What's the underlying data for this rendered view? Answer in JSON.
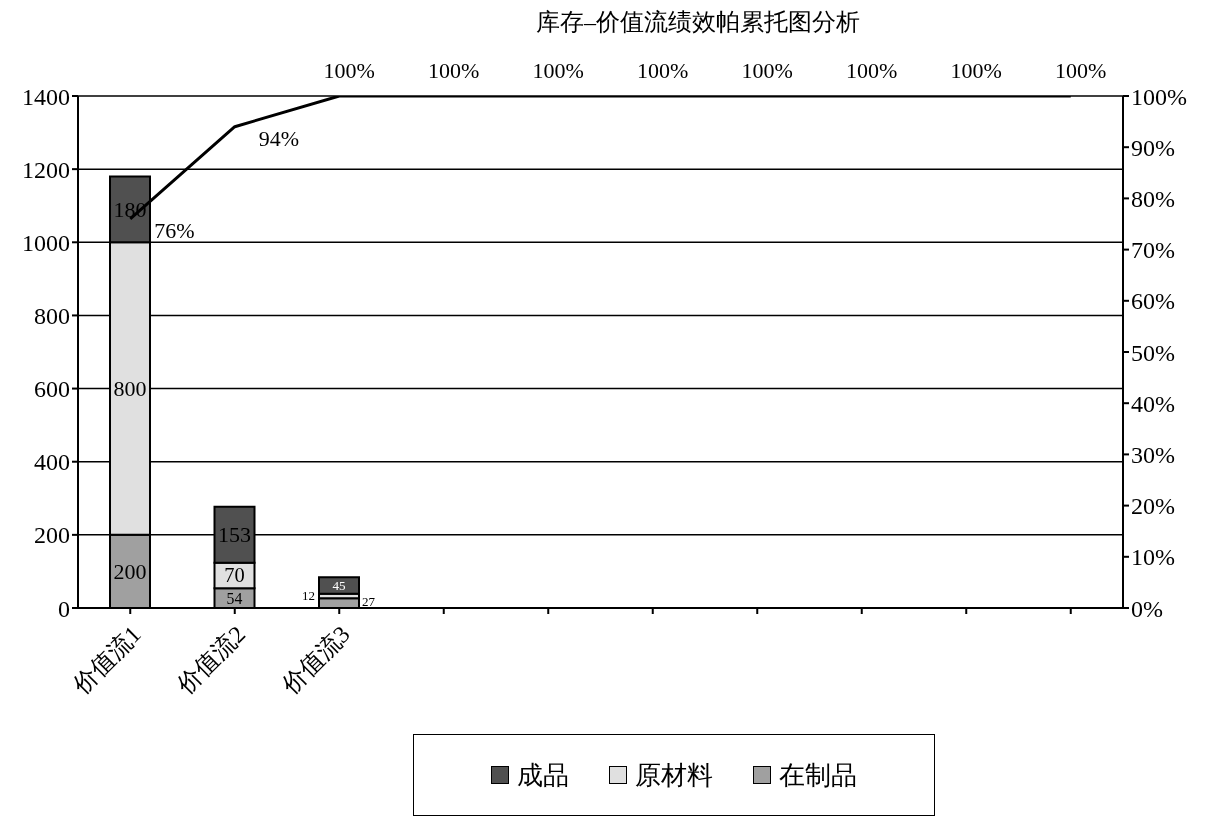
{
  "chart_data": {
    "type": "bar",
    "title": "库存–价值流绩效帕累托图分析",
    "stacked": true,
    "categories": [
      "价值流1",
      "价值流2",
      "价值流3",
      null,
      null,
      null,
      null,
      null,
      null,
      null
    ],
    "series": [
      {
        "name": "在制品",
        "color": "#a0a0a0",
        "values": [
          200,
          54,
          27,
          null,
          null,
          null,
          null,
          null,
          null,
          null
        ]
      },
      {
        "name": "原材料",
        "color": "#e0e0e0",
        "values": [
          800,
          70,
          12,
          null,
          null,
          null,
          null,
          null,
          null,
          null
        ]
      },
      {
        "name": "成品",
        "color": "#505050",
        "values": [
          180,
          153,
          45,
          null,
          null,
          null,
          null,
          null,
          null,
          null
        ]
      },
      {
        "type": "line",
        "axis": "y2",
        "color": "#000000",
        "values": [
          76,
          94,
          100,
          100,
          100,
          100,
          100,
          100,
          100,
          100
        ],
        "value_labels": [
          "76%",
          "94%",
          "100%",
          "100%",
          "100%",
          "100%",
          "100%",
          "100%",
          "100%",
          "100%"
        ]
      }
    ],
    "data_labels": true,
    "ylim": [
      0,
      1400
    ],
    "yticks": [
      0,
      200,
      400,
      600,
      800,
      1000,
      1200,
      1400
    ],
    "y2lim": [
      0,
      100
    ],
    "y2ticks": [
      {
        "value": 0,
        "label": "0%"
      },
      {
        "value": 10,
        "label": "10%"
      },
      {
        "value": 20,
        "label": "20%"
      },
      {
        "value": 30,
        "label": "30%"
      },
      {
        "value": 40,
        "label": "40%"
      },
      {
        "value": 50,
        "label": "50%"
      },
      {
        "value": 60,
        "label": "60%"
      },
      {
        "value": 70,
        "label": "70%"
      },
      {
        "value": 80,
        "label": "80%"
      },
      {
        "value": 90,
        "label": "90%"
      },
      {
        "value": 100,
        "label": "100%"
      }
    ],
    "grid": "y",
    "legend": "bottom"
  }
}
